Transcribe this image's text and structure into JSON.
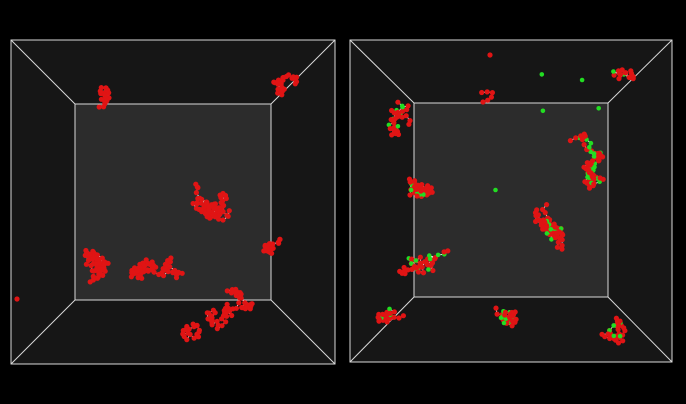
{
  "colors": {
    "background": "#000000",
    "frame_line": "#d9d9d9",
    "side_wall": "#161616",
    "back_wall": "#2c2c2c",
    "bead_red": "#e01414",
    "bead_green": "#22dd22",
    "bond": "#f2f2f2"
  },
  "panels": [
    {
      "name": "left-panel",
      "clusters": [
        {
          "name": "top-left-chain",
          "kind": "red",
          "count": 22,
          "seed": 11
        },
        {
          "name": "top-right-chain",
          "kind": "red",
          "count": 30,
          "seed": 12
        },
        {
          "name": "right-middle-chain",
          "kind": "red",
          "count": 26,
          "seed": 13
        },
        {
          "name": "upper-center-network",
          "kind": "red",
          "count": 75,
          "seed": 14
        },
        {
          "name": "left-cluster",
          "kind": "red",
          "count": 70,
          "seed": 15
        },
        {
          "name": "lower-center-network",
          "kind": "red",
          "count": 70,
          "seed": 16
        },
        {
          "name": "bottom-right-network",
          "kind": "red",
          "count": 60,
          "seed": 17
        },
        {
          "name": "bottom-left-chain",
          "kind": "red",
          "count": 18,
          "seed": 18
        },
        {
          "name": "isolated-bead",
          "kind": "red",
          "count": 1,
          "seed": 19
        }
      ]
    },
    {
      "name": "right-panel",
      "clusters": [
        {
          "name": "top-center-bead",
          "kind": "red",
          "count": 1,
          "seed": 21
        },
        {
          "name": "top-pair",
          "kind": "red",
          "count": 6,
          "seed": 22
        },
        {
          "name": "top-right-chain",
          "kind": "mixed",
          "count": 18,
          "seed": 23
        },
        {
          "name": "upper-left-cluster",
          "kind": "mixed",
          "count": 40,
          "seed": 24
        },
        {
          "name": "left-middle-cluster",
          "kind": "mixed",
          "count": 45,
          "seed": 25
        },
        {
          "name": "right-upper-network",
          "kind": "mixed",
          "count": 85,
          "seed": 26
        },
        {
          "name": "center-network",
          "kind": "mixed",
          "count": 80,
          "seed": 27
        },
        {
          "name": "left-lower-cluster",
          "kind": "mixed",
          "count": 45,
          "seed": 28
        },
        {
          "name": "bottom-left-cluster",
          "kind": "mixed",
          "count": 30,
          "seed": 29
        },
        {
          "name": "bottom-center-chain",
          "kind": "mixed",
          "count": 40,
          "seed": 30
        },
        {
          "name": "bottom-right-cluster",
          "kind": "mixed",
          "count": 35,
          "seed": 31
        },
        {
          "name": "stray-green-beads",
          "kind": "green",
          "count": 5,
          "seed": 32
        }
      ]
    }
  ]
}
